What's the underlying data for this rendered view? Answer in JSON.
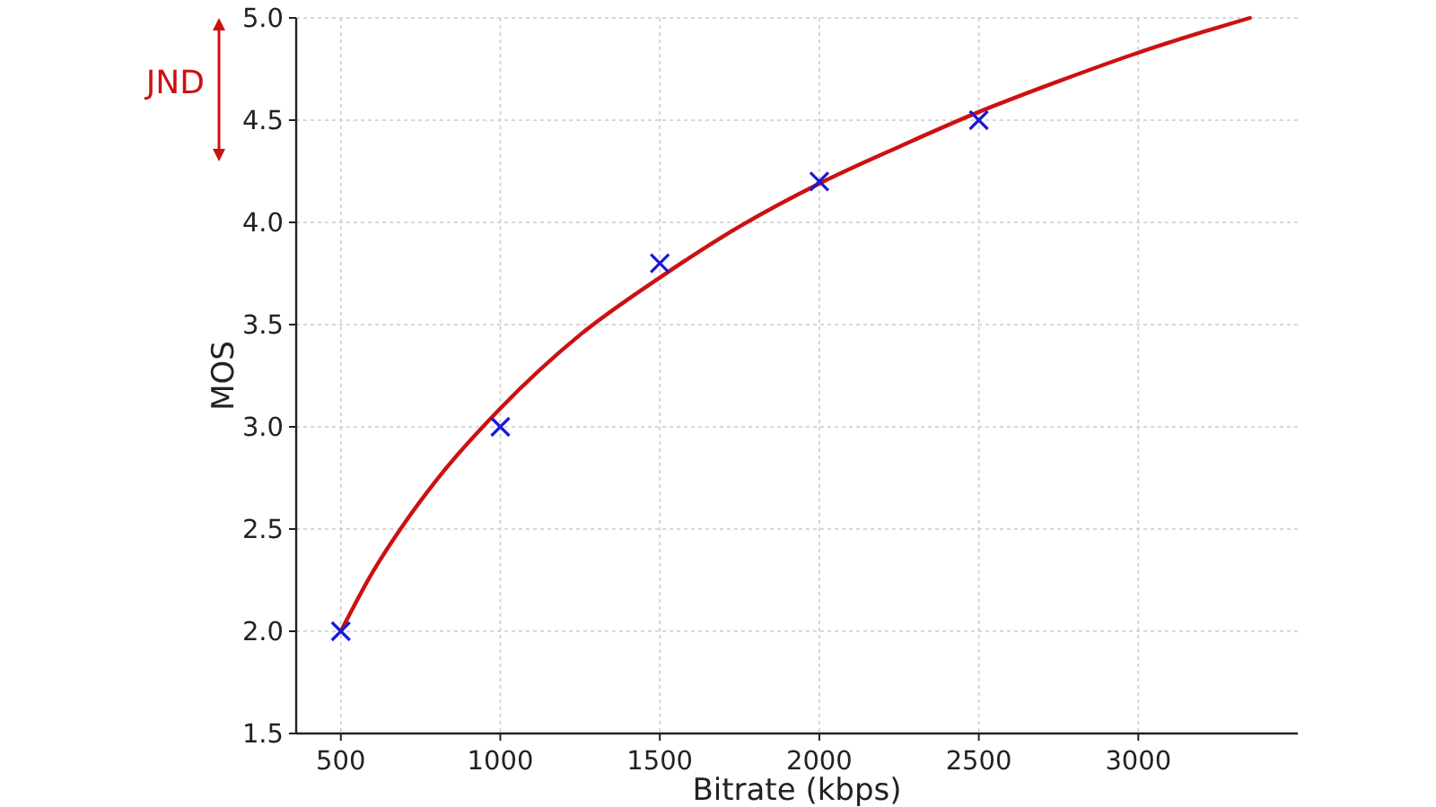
{
  "chart_data": {
    "type": "scatter",
    "xlabel": "Bitrate (kbps)",
    "ylabel": "MOS",
    "xlim": [
      360,
      3500
    ],
    "xticks": [
      500,
      1000,
      1500,
      2000,
      2500,
      3000
    ],
    "ylim": [
      1.5,
      5.0
    ],
    "yticks": [
      {
        "value": 1.5,
        "label": "1.5"
      },
      {
        "value": 2,
        "label": "2.0"
      },
      {
        "value": 2.5,
        "label": "2.5"
      },
      {
        "value": 3,
        "label": "3.0"
      },
      {
        "value": 3.5,
        "label": "3.5"
      },
      {
        "value": 4,
        "label": "4.0"
      },
      {
        "value": 4.5,
        "label": "4.5"
      },
      {
        "value": 5,
        "label": "5.0"
      }
    ],
    "grid": true,
    "annotations": [
      "JND"
    ],
    "series": [
      {
        "color": "#1a1ad6",
        "marker": "cross",
        "x": [
          500,
          1000,
          1500,
          2000,
          2500
        ],
        "values": [
          2.0,
          3.0,
          3.8,
          4.2,
          4.5
        ]
      },
      {
        "type": "line",
        "color": "#cc1111",
        "marker": "none",
        "x": [
          500,
          600,
          700,
          800,
          1000,
          1250,
          1500,
          1750,
          2000,
          2250,
          2500,
          2750,
          3000,
          3200,
          3350
        ],
        "values": [
          2.0,
          2.29,
          2.53,
          2.74,
          3.09,
          3.45,
          3.73,
          3.98,
          4.19,
          4.37,
          4.54,
          4.69,
          4.83,
          4.93,
          5.0
        ]
      }
    ]
  }
}
